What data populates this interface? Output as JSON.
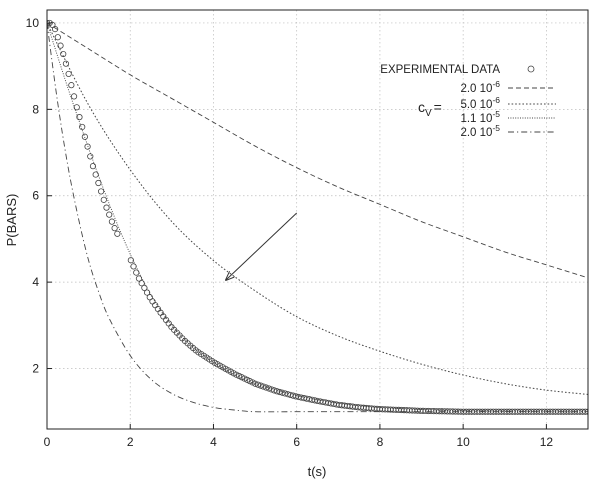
{
  "chart_data": {
    "type": "scatter",
    "xlabel": "t(s)",
    "ylabel": "P(BARS)",
    "xlim": [
      0,
      13
    ],
    "ylim": [
      0.6,
      10.3
    ],
    "xticks": [
      "0",
      "2",
      "4",
      "6",
      "8",
      "10",
      "12"
    ],
    "yticks": [
      "2",
      "4",
      "6",
      "8",
      "10"
    ],
    "grid": true,
    "legend_position": "top-right",
    "cv_label": "c",
    "cv_sub": "V",
    "cv_eq": "=",
    "series": [
      {
        "name": "EXPERIMENTAL DATA",
        "kind": "markers",
        "x": [
          0,
          0.1,
          0.2,
          0.3,
          0.4,
          0.5,
          0.6,
          0.7,
          0.8,
          0.9,
          1.0,
          1.1,
          1.2,
          1.3,
          1.4,
          1.5,
          1.6,
          1.7,
          1.95,
          2.2,
          2.5,
          2.8,
          3.0,
          3.3,
          3.6,
          4.0,
          4.5,
          5.0,
          5.5,
          6.0,
          6.5,
          7.0,
          7.5,
          8.0,
          8.5,
          9.0,
          9.5,
          10.0,
          11.0,
          12.0,
          13.0
        ],
        "y": [
          10,
          10,
          9.85,
          9.55,
          9.25,
          8.9,
          8.5,
          8.1,
          7.75,
          7.4,
          7.05,
          6.7,
          6.4,
          6.1,
          5.8,
          5.55,
          5.3,
          5.1,
          4.65,
          4.1,
          3.6,
          3.2,
          2.95,
          2.65,
          2.4,
          2.15,
          1.88,
          1.65,
          1.48,
          1.35,
          1.25,
          1.16,
          1.1,
          1.06,
          1.04,
          1.02,
          1.01,
          1.0,
          1.0,
          1.0,
          1.0
        ]
      },
      {
        "name": "2.0 10",
        "exponent": "-6",
        "kind": "dashed",
        "x": [
          0,
          1,
          2,
          3,
          4,
          5,
          6,
          7,
          8,
          9,
          10,
          11,
          12,
          13
        ],
        "y": [
          10,
          9.4,
          8.8,
          8.25,
          7.7,
          7.15,
          6.65,
          6.2,
          5.8,
          5.4,
          5.05,
          4.7,
          4.4,
          4.1
        ]
      },
      {
        "name": "5.0 10",
        "exponent": "-6",
        "kind": "dotted",
        "x": [
          0,
          1,
          2,
          3,
          4,
          5,
          6,
          7,
          8,
          9,
          10,
          11,
          12,
          13
        ],
        "y": [
          10,
          8.1,
          6.6,
          5.4,
          4.5,
          3.8,
          3.2,
          2.75,
          2.4,
          2.1,
          1.85,
          1.65,
          1.5,
          1.4
        ]
      },
      {
        "name": "1.1 10",
        "exponent": "-5",
        "kind": "dotted-fine",
        "x": [
          0,
          0.5,
          1,
          1.5,
          2,
          2.5,
          3,
          3.5,
          4,
          4.5,
          5,
          6,
          7,
          8,
          9,
          10,
          11,
          12,
          13
        ],
        "y": [
          10,
          8.5,
          7.1,
          5.8,
          4.65,
          3.7,
          3.0,
          2.5,
          2.15,
          1.85,
          1.65,
          1.37,
          1.2,
          1.1,
          1.05,
          1.02,
          1.01,
          1.0,
          1.0
        ]
      },
      {
        "name": "2.0 10",
        "exponent": "-5",
        "kind": "dashdot",
        "x": [
          0,
          0.25,
          0.5,
          0.75,
          1,
          1.25,
          1.5,
          2,
          2.5,
          3,
          3.5,
          4,
          4.5,
          5,
          6,
          8,
          10,
          13
        ],
        "y": [
          10,
          8.2,
          6.7,
          5.5,
          4.5,
          3.75,
          3.15,
          2.3,
          1.75,
          1.42,
          1.22,
          1.1,
          1.04,
          1.0,
          1.0,
          1.0,
          1.0,
          1.0
        ]
      }
    ],
    "annotations": [
      {
        "type": "arrow",
        "from": [
          6.0,
          5.6
        ],
        "to": [
          4.3,
          4.05
        ]
      }
    ]
  }
}
